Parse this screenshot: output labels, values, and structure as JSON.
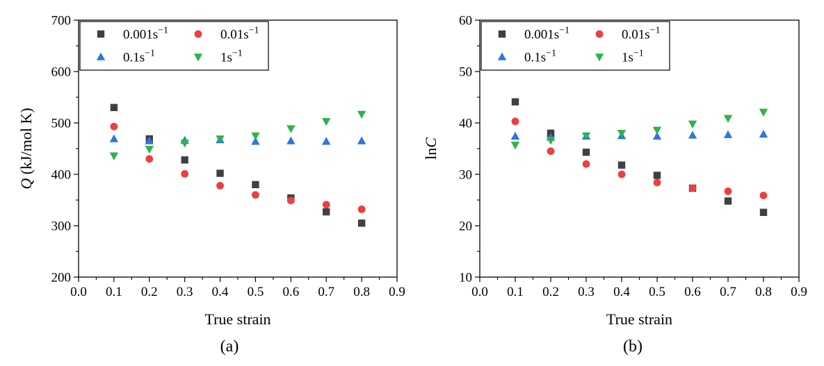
{
  "chart_data": [
    {
      "type": "scatter",
      "panel_label": "(a)",
      "xlabel": "True strain",
      "ylabel": {
        "var": "Q",
        "unit": " (kJ/mol K)"
      },
      "xlim": [
        0.0,
        0.9
      ],
      "ylim": [
        200,
        700
      ],
      "xticks": [
        0.0,
        0.1,
        0.2,
        0.3,
        0.4,
        0.5,
        0.6,
        0.7,
        0.8,
        0.9
      ],
      "yticks": [
        200,
        300,
        400,
        500,
        600,
        700
      ],
      "x": [
        0.1,
        0.2,
        0.3,
        0.4,
        0.5,
        0.6,
        0.7,
        0.8
      ],
      "series": [
        {
          "name": "0.001s",
          "sup": "−1",
          "marker": "square",
          "color": "#404040",
          "values": [
            530,
            469,
            428,
            402,
            380,
            354,
            327,
            305
          ]
        },
        {
          "name": "0.01s",
          "sup": "−1",
          "marker": "circle",
          "color": "#ee3e3e",
          "values": [
            493,
            430,
            401,
            378,
            360,
            349,
            341,
            332
          ]
        },
        {
          "name": "0.1s",
          "sup": "−1",
          "marker": "triangle-up",
          "color": "#2f76de",
          "values": [
            469,
            465,
            466,
            467,
            464,
            465,
            464,
            465
          ]
        },
        {
          "name": "1s",
          "sup": "−1",
          "marker": "triangle-down",
          "color": "#2eb24c",
          "values": [
            436,
            449,
            461,
            469,
            475,
            489,
            503,
            517
          ]
        }
      ]
    },
    {
      "type": "scatter",
      "panel_label": "(b)",
      "xlabel": "True strain",
      "ylabel": {
        "var": "C",
        "prefix": "ln"
      },
      "xlim": [
        0.0,
        0.9
      ],
      "ylim": [
        10,
        60
      ],
      "xticks": [
        0.0,
        0.1,
        0.2,
        0.3,
        0.4,
        0.5,
        0.6,
        0.7,
        0.8,
        0.9
      ],
      "yticks": [
        10,
        20,
        30,
        40,
        50,
        60
      ],
      "x": [
        0.1,
        0.2,
        0.3,
        0.4,
        0.5,
        0.6,
        0.7,
        0.8
      ],
      "series": [
        {
          "name": "0.001s",
          "sup": "−1",
          "marker": "square",
          "color": "#404040",
          "values": [
            44.1,
            38.0,
            34.3,
            31.8,
            29.8,
            27.3,
            24.8,
            22.6
          ]
        },
        {
          "name": "0.01s",
          "sup": "−1",
          "marker": "circle",
          "color": "#ee3e3e",
          "values": [
            40.3,
            34.5,
            32.0,
            30.0,
            28.4,
            27.3,
            26.7,
            25.9
          ]
        },
        {
          "name": "0.1s",
          "sup": "−1",
          "marker": "triangle-up",
          "color": "#2f76de",
          "values": [
            37.4,
            37.2,
            37.4,
            37.5,
            37.4,
            37.6,
            37.7,
            37.8
          ]
        },
        {
          "name": "1s",
          "sup": "−1",
          "marker": "triangle-down",
          "color": "#2eb24c",
          "values": [
            35.7,
            36.6,
            37.5,
            38.0,
            38.6,
            39.8,
            40.9,
            42.1
          ]
        }
      ]
    }
  ]
}
